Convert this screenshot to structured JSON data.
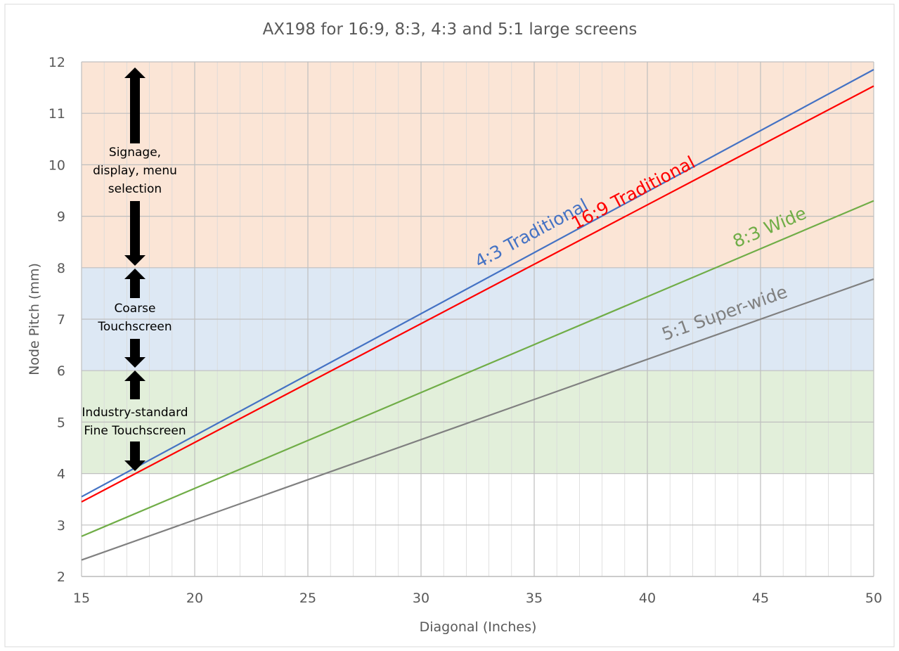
{
  "chart_data": {
    "type": "line",
    "title": "AX198 for 16:9, 8:3, 4:3 and 5:1 large screens",
    "xlabel": "Diagonal (Inches)",
    "ylabel": "Node Pitch (mm)",
    "xlim": [
      15,
      50
    ],
    "ylim": [
      2,
      12
    ],
    "x_ticks": [
      "15",
      "20",
      "25",
      "30",
      "35",
      "40",
      "45",
      "50"
    ],
    "y_ticks": [
      "2",
      "3",
      "4",
      "5",
      "6",
      "7",
      "8",
      "9",
      "10",
      "11",
      "12"
    ],
    "grid": true,
    "bands": [
      {
        "name": "fine",
        "y": [
          4,
          6
        ],
        "color": "#e2efda",
        "label": [
          "Industry-standard",
          "Fine Touchscreen"
        ]
      },
      {
        "name": "coarse",
        "y": [
          6,
          8
        ],
        "color": "#dde8f4",
        "label": [
          "Coarse",
          "Touchscreen"
        ]
      },
      {
        "name": "signage",
        "y": [
          8,
          12
        ],
        "color": "#fbe5d6",
        "label": [
          "Signage,",
          "display, menu",
          "selection"
        ]
      }
    ],
    "series": [
      {
        "name": "4:3 Traditional",
        "color": "#4472c4",
        "x": [
          15,
          50
        ],
        "y": [
          3.55,
          11.85
        ]
      },
      {
        "name": "16:9 Traditional",
        "color": "#ff0000",
        "x": [
          15,
          50
        ],
        "y": [
          3.45,
          11.53
        ]
      },
      {
        "name": "8:3 Wide",
        "color": "#70ad47",
        "x": [
          15,
          50
        ],
        "y": [
          2.78,
          9.3
        ]
      },
      {
        "name": "5:1 Super-wide",
        "color": "#808080",
        "x": [
          15,
          50
        ],
        "y": [
          2.32,
          7.78
        ]
      }
    ]
  }
}
